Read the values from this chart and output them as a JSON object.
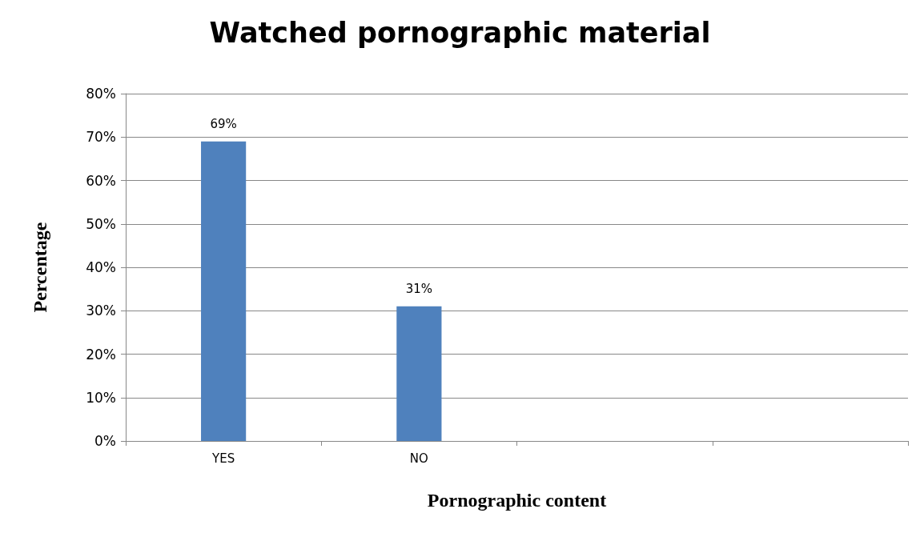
{
  "chart_data": {
    "type": "bar",
    "title": "Watched pornographic material",
    "xlabel": "Pornographic content",
    "ylabel": "Percentage",
    "categories": [
      "YES",
      "NO",
      null,
      null
    ],
    "values": [
      69,
      31,
      null,
      null
    ],
    "value_labels": [
      "69%",
      "31%",
      null,
      null
    ],
    "color": "#4f81bd",
    "ylim": [
      0,
      80
    ],
    "yticks": [
      {
        "value": 0,
        "label": "0%"
      },
      {
        "value": 10,
        "label": "10%"
      },
      {
        "value": 20,
        "label": "20%"
      },
      {
        "value": 30,
        "label": "30%"
      },
      {
        "value": 40,
        "label": "40%"
      },
      {
        "value": 50,
        "label": "50%"
      },
      {
        "value": 60,
        "label": "60%"
      },
      {
        "value": 70,
        "label": "70%"
      },
      {
        "value": 80,
        "label": "80%"
      }
    ],
    "grid": "y"
  }
}
